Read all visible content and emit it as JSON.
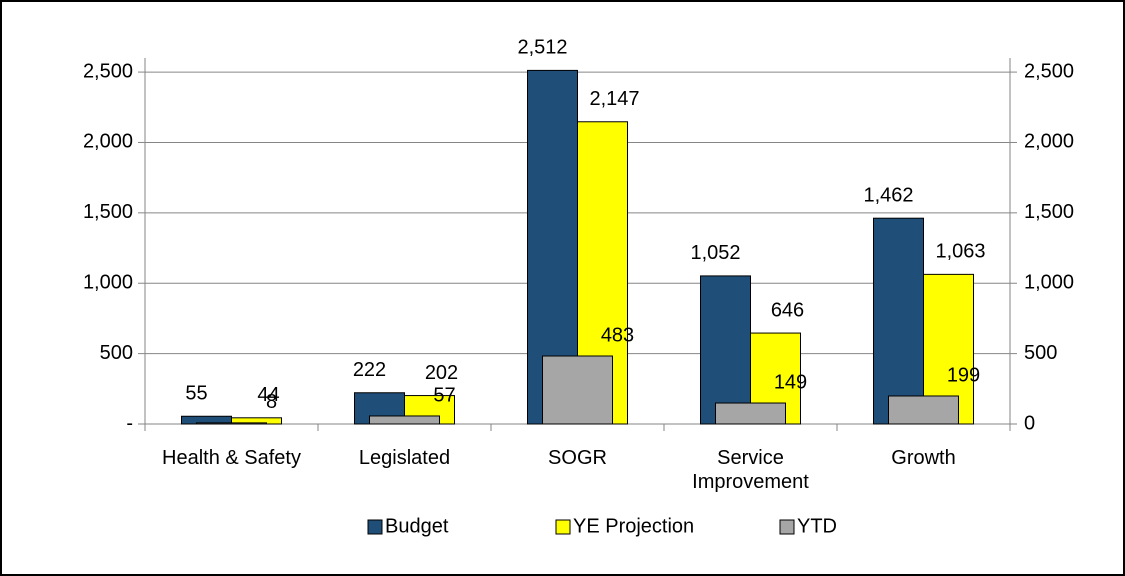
{
  "chart_data": {
    "type": "bar",
    "categories": [
      "Health & Safety",
      "Legislated",
      "SOGR",
      "Service Improvement",
      "Growth"
    ],
    "series": [
      {
        "name": "Budget",
        "color": "#1f4e79",
        "values": [
          55,
          222,
          2512,
          1052,
          1462
        ],
        "value_labels": [
          "55",
          "222",
          "2,512",
          "1,052",
          "1,462"
        ]
      },
      {
        "name": "YE Projection",
        "color": "#ffff00",
        "values": [
          44,
          202,
          2147,
          646,
          1063
        ],
        "value_labels": [
          "44",
          "202",
          "2,147",
          "646",
          "1,063"
        ]
      },
      {
        "name": "YTD",
        "color": "#a6a6a6",
        "axis": "y2",
        "values": [
          8,
          57,
          483,
          149,
          199
        ]
      }
    ],
    "ylim": [
      0,
      2600
    ],
    "yticks": [
      {
        "value": 0,
        "label": "-"
      },
      500,
      {
        "value": 1000,
        "label": "1,000"
      },
      {
        "value": 1500,
        "label": "1,500"
      },
      {
        "value": 2000,
        "label": "2,000"
      },
      {
        "value": 2500,
        "label": "2,500"
      }
    ],
    "y2lim": [
      0,
      2600
    ],
    "y2ticks": [
      0,
      500,
      {
        "value": 1000,
        "label": "1,000"
      },
      {
        "value": 1500,
        "label": "1,500"
      },
      {
        "value": 2000,
        "label": "2,000"
      },
      {
        "value": 2500,
        "label": "2,500"
      }
    ],
    "legend": "bottom",
    "grid": true
  }
}
